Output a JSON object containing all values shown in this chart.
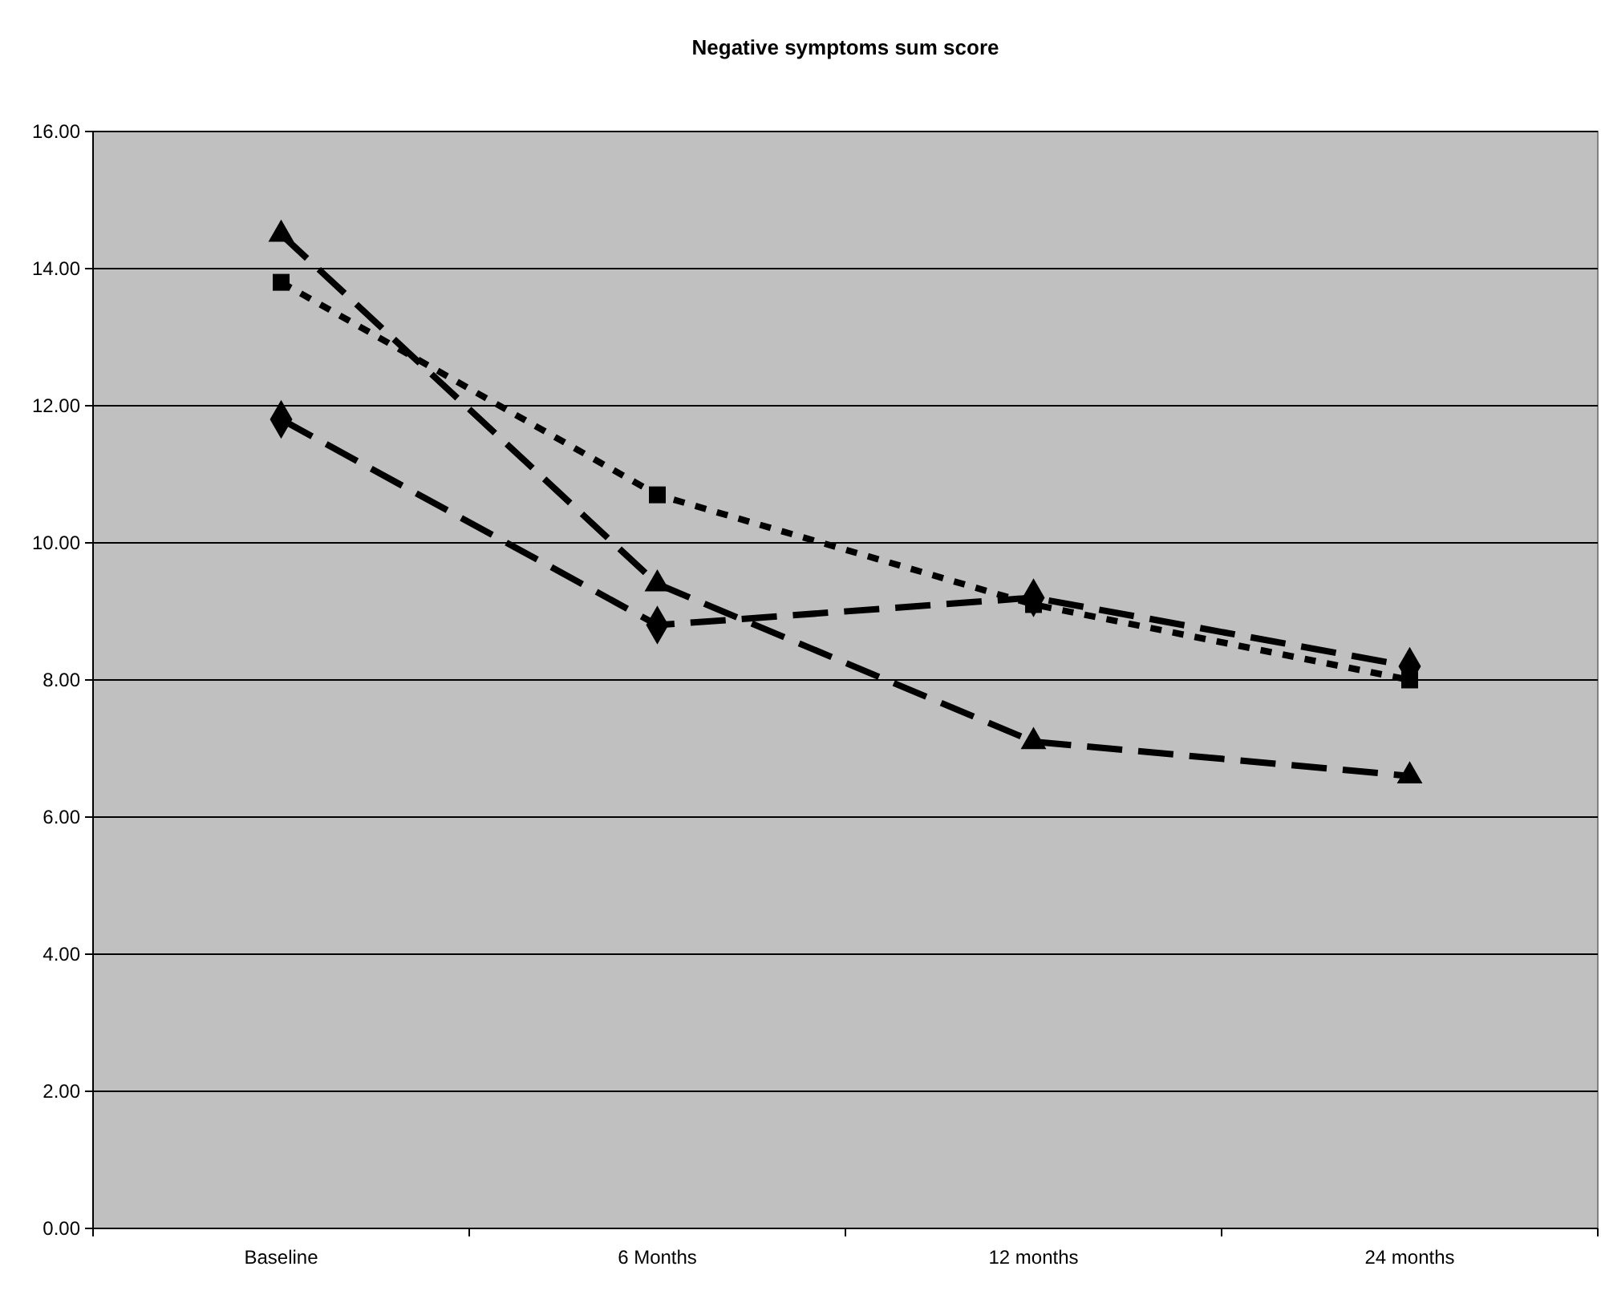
{
  "chart_data": {
    "type": "line",
    "title": "Negative symptoms sum score",
    "categories": [
      "Baseline",
      "6 Months",
      "12 months",
      "24 months"
    ],
    "series": [
      {
        "color": "#000000",
        "values": [
          11.8,
          8.8,
          9.2,
          8.2
        ],
        "marker": "diamond",
        "line_style": "dashed"
      },
      {
        "color": "#000000",
        "values": [
          13.8,
          10.7,
          9.1,
          8.0
        ],
        "marker": "square",
        "line_style": "dotted"
      },
      {
        "color": "#000000",
        "values": [
          14.5,
          9.4,
          7.1,
          6.6
        ],
        "marker": "triangle",
        "line_style": "dashed"
      }
    ],
    "ylim": [
      0,
      16
    ],
    "yticks": [
      {
        "value": 0,
        "label": "0.00"
      },
      {
        "value": 2,
        "label": "2.00"
      },
      {
        "value": 4,
        "label": "4.00"
      },
      {
        "value": 6,
        "label": "6.00"
      },
      {
        "value": 8,
        "label": "8.00"
      },
      {
        "value": 10,
        "label": "10.00"
      },
      {
        "value": 12,
        "label": "12.00"
      },
      {
        "value": 14,
        "label": "14.00"
      },
      {
        "value": 16,
        "label": "16.00"
      }
    ],
    "grid": "y"
  }
}
